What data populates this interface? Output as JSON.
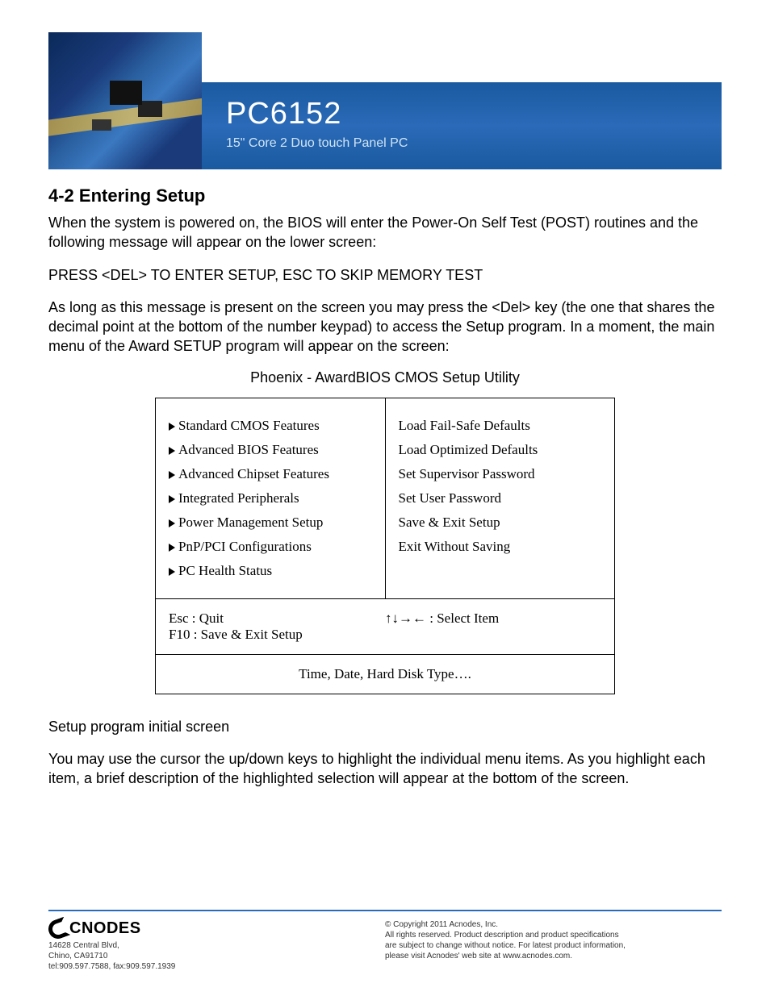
{
  "banner": {
    "title": "PC6152",
    "subtitle": "15\" Core 2 Duo touch Panel PC",
    "title_color": "#ffffff",
    "subtitle_color": "#d0e4f4",
    "strip_gradient_top": "#1a5aa0",
    "strip_gradient_mid": "#2a6ab8",
    "title_fontsize": 38,
    "subtitle_fontsize": 16
  },
  "section": {
    "heading": "4-2  Entering Setup",
    "para1": "When the system is powered on, the BIOS will enter the Power-On Self Test (POST) routines and the following message will appear on the lower screen:",
    "para2": "PRESS <DEL> TO ENTER SETUP, ESC TO SKIP MEMORY TEST",
    "para3": "As long as this message is present on the screen you may press the <Del> key (the one that shares the decimal point at the bottom of the number keypad) to access the Setup program. In a moment, the main menu of the Award SETUP program will appear on the screen:",
    "caption": "Phoenix - AwardBIOS CMOS Setup Utility",
    "after1": "Setup program initial screen",
    "after2": "You may use the cursor the up/down keys to highlight the individual menu items.  As  you  highlight each item,  a  brief  description  of  the  highlighted  selection will appear at the bottom of the screen."
  },
  "bios": {
    "left_items": [
      "Standard CMOS Features",
      "Advanced BIOS Features",
      "Advanced Chipset Features",
      "Integrated Peripherals",
      "Power Management Setup",
      "PnP/PCI Configurations",
      "PC Health Status"
    ],
    "right_items": [
      "Load Fail-Safe Defaults",
      "Load Optimized Defaults",
      "Set Supervisor Password",
      "Set User Password",
      "Save & Exit Setup",
      "Exit Without Saving"
    ],
    "nav_left_line1": "Esc : Quit",
    "nav_left_line2": "F10 : Save & Exit Setup",
    "nav_right": "↑↓→← : Select Item",
    "footer": "Time, Date, Hard Disk Type…."
  },
  "footer": {
    "logo_text": "CNODES",
    "addr_line1": "14628 Central Blvd,",
    "addr_line2": "Chino, CA91710",
    "addr_line3": "tel:909.597.7588, fax:909.597.1939",
    "copy_line1": "© Copyright 2011 Acnodes, Inc.",
    "copy_line2": "All rights reserved. Product description and product specifications",
    "copy_line3": "are subject to change without notice. For latest product information,",
    "copy_line4": "please visit Acnodes' web site at www.acnodes.com."
  },
  "colors": {
    "rule": "#2a6ab8",
    "text": "#000000",
    "body_bg": "#ffffff"
  }
}
